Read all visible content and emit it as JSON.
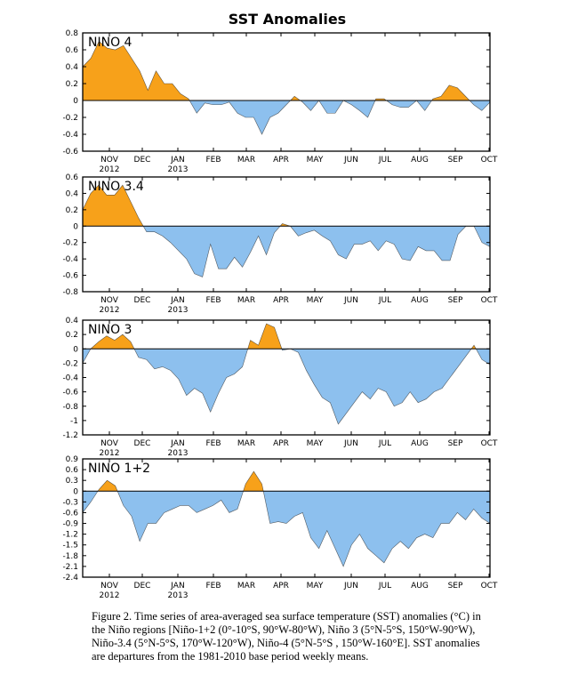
{
  "title": "SST Anomalies",
  "caption": "Figure 2. Time series of area-averaged sea surface temperature (SST) anomalies (°C) in the Niño regions [Niño-1+2 (0°-10°S, 90°W-80°W), Niño 3 (5°N-5°S, 150°W-90°W), Niño-3.4 (5°N-5°S, 170°W-120°W), Niño-4 (5°N-5°S , 150°W-160°E]. SST anomalies are departures from the 1981-2010 base period weekly means.",
  "colors": {
    "positive": "#F7A11A",
    "negative": "#8DC0EE",
    "axis": "#000000"
  },
  "chart_data": [
    {
      "type": "area",
      "title": "NINO 4",
      "x_labels": [
        "NOV",
        "DEC",
        "JAN",
        "FEB",
        "MAR",
        "APR",
        "MAY",
        "JUN",
        "JUL",
        "AUG",
        "SEP",
        "OCT"
      ],
      "x_year_labels": [
        "2012",
        "",
        "2013",
        "",
        "",
        "",
        "",
        "",
        "",
        "",
        "",
        ""
      ],
      "ylim": [
        -0.6,
        0.8
      ],
      "yticks": [
        "0.8",
        "0.6",
        "0.4",
        "0.2",
        "0",
        "-0.2",
        "-0.4",
        "-0.6"
      ],
      "weekly_values": [
        0.4,
        0.5,
        0.7,
        0.62,
        0.6,
        0.65,
        0.5,
        0.35,
        0.12,
        0.35,
        0.2,
        0.2,
        0.08,
        0.02,
        -0.15,
        -0.03,
        -0.05,
        -0.05,
        -0.02,
        -0.15,
        -0.2,
        -0.2,
        -0.4,
        -0.2,
        -0.15,
        -0.05,
        0.05,
        -0.02,
        -0.12,
        0.0,
        -0.15,
        -0.15,
        0.0,
        -0.05,
        -0.12,
        -0.2,
        0.02,
        0.02,
        -0.05,
        -0.08,
        -0.08,
        0.0,
        -0.12,
        0.02,
        0.05,
        0.18,
        0.15,
        0.05,
        -0.05,
        -0.12,
        -0.02
      ]
    },
    {
      "type": "area",
      "title": "NINO 3.4",
      "x_labels": [
        "NOV",
        "DEC",
        "JAN",
        "FEB",
        "MAR",
        "APR",
        "MAY",
        "JUN",
        "JUL",
        "AUG",
        "SEP",
        "OCT"
      ],
      "x_year_labels": [
        "2012",
        "",
        "2013",
        "",
        "",
        "",
        "",
        "",
        "",
        "",
        "",
        ""
      ],
      "ylim": [
        -0.8,
        0.6
      ],
      "yticks": [
        "0.6",
        "0.4",
        "0.2",
        "0",
        "-0.2",
        "-0.4",
        "-0.6",
        "-0.8"
      ],
      "weekly_values": [
        0.2,
        0.4,
        0.5,
        0.38,
        0.38,
        0.5,
        0.3,
        0.1,
        -0.07,
        -0.07,
        -0.12,
        -0.2,
        -0.3,
        -0.4,
        -0.58,
        -0.62,
        -0.22,
        -0.52,
        -0.52,
        -0.38,
        -0.5,
        -0.32,
        -0.12,
        -0.35,
        -0.08,
        0.03,
        0.0,
        -0.12,
        -0.08,
        -0.05,
        -0.12,
        -0.18,
        -0.35,
        -0.4,
        -0.22,
        -0.22,
        -0.18,
        -0.3,
        -0.18,
        -0.22,
        -0.4,
        -0.42,
        -0.25,
        -0.3,
        -0.3,
        -0.42,
        -0.42,
        -0.1,
        0.0,
        0.0,
        -0.2,
        -0.25
      ]
    },
    {
      "type": "area",
      "title": "NINO 3",
      "x_labels": [
        "NOV",
        "DEC",
        "JAN",
        "FEB",
        "MAR",
        "APR",
        "MAY",
        "JUN",
        "JUL",
        "AUG",
        "SEP",
        "OCT"
      ],
      "x_year_labels": [
        "2012",
        "",
        "2013",
        "",
        "",
        "",
        "",
        "",
        "",
        "",
        "",
        ""
      ],
      "ylim": [
        -1.2,
        0.4
      ],
      "yticks": [
        "0.4",
        "0.2",
        "0",
        "-0.2",
        "-0.4",
        "-0.6",
        "-0.8",
        "-1",
        "-1.2"
      ],
      "weekly_values": [
        -0.2,
        0.0,
        0.1,
        0.18,
        0.12,
        0.2,
        0.1,
        -0.12,
        -0.15,
        -0.28,
        -0.25,
        -0.3,
        -0.42,
        -0.65,
        -0.55,
        -0.62,
        -0.88,
        -0.62,
        -0.4,
        -0.35,
        -0.25,
        0.12,
        0.05,
        0.35,
        0.3,
        -0.02,
        0.0,
        -0.05,
        -0.3,
        -0.5,
        -0.68,
        -0.75,
        -1.05,
        -0.9,
        -0.75,
        -0.6,
        -0.7,
        -0.55,
        -0.6,
        -0.8,
        -0.75,
        -0.6,
        -0.75,
        -0.7,
        -0.6,
        -0.55,
        -0.4,
        -0.25,
        -0.1,
        0.05,
        -0.15,
        -0.22
      ]
    },
    {
      "type": "area",
      "title": "NINO 1+2",
      "x_labels": [
        "NOV",
        "DEC",
        "JAN",
        "FEB",
        "MAR",
        "APR",
        "MAY",
        "JUN",
        "JUL",
        "AUG",
        "SEP",
        "OCT"
      ],
      "x_year_labels": [
        "2012",
        "",
        "2013",
        "",
        "",
        "",
        "",
        "",
        "",
        "",
        "",
        ""
      ],
      "ylim": [
        -2.4,
        0.9
      ],
      "yticks": [
        "0.9",
        "0.6",
        "0.3",
        "0",
        "-0.3",
        "-0.6",
        "-0.9",
        "-1.2",
        "-1.5",
        "-1.8",
        "-2.1",
        "-2.4"
      ],
      "weekly_values": [
        -0.6,
        -0.3,
        0.05,
        0.3,
        0.15,
        -0.4,
        -0.7,
        -1.4,
        -0.9,
        -0.9,
        -0.6,
        -0.5,
        -0.4,
        -0.4,
        -0.6,
        -0.5,
        -0.4,
        -0.25,
        -0.6,
        -0.5,
        0.2,
        0.55,
        0.2,
        -0.9,
        -0.85,
        -0.9,
        -0.7,
        -0.6,
        -1.3,
        -1.6,
        -1.1,
        -1.6,
        -2.1,
        -1.5,
        -1.2,
        -1.6,
        -1.8,
        -2.0,
        -1.6,
        -1.4,
        -1.6,
        -1.3,
        -1.2,
        -1.3,
        -0.9,
        -0.9,
        -0.6,
        -0.8,
        -0.5,
        -0.75,
        -0.9
      ]
    }
  ]
}
